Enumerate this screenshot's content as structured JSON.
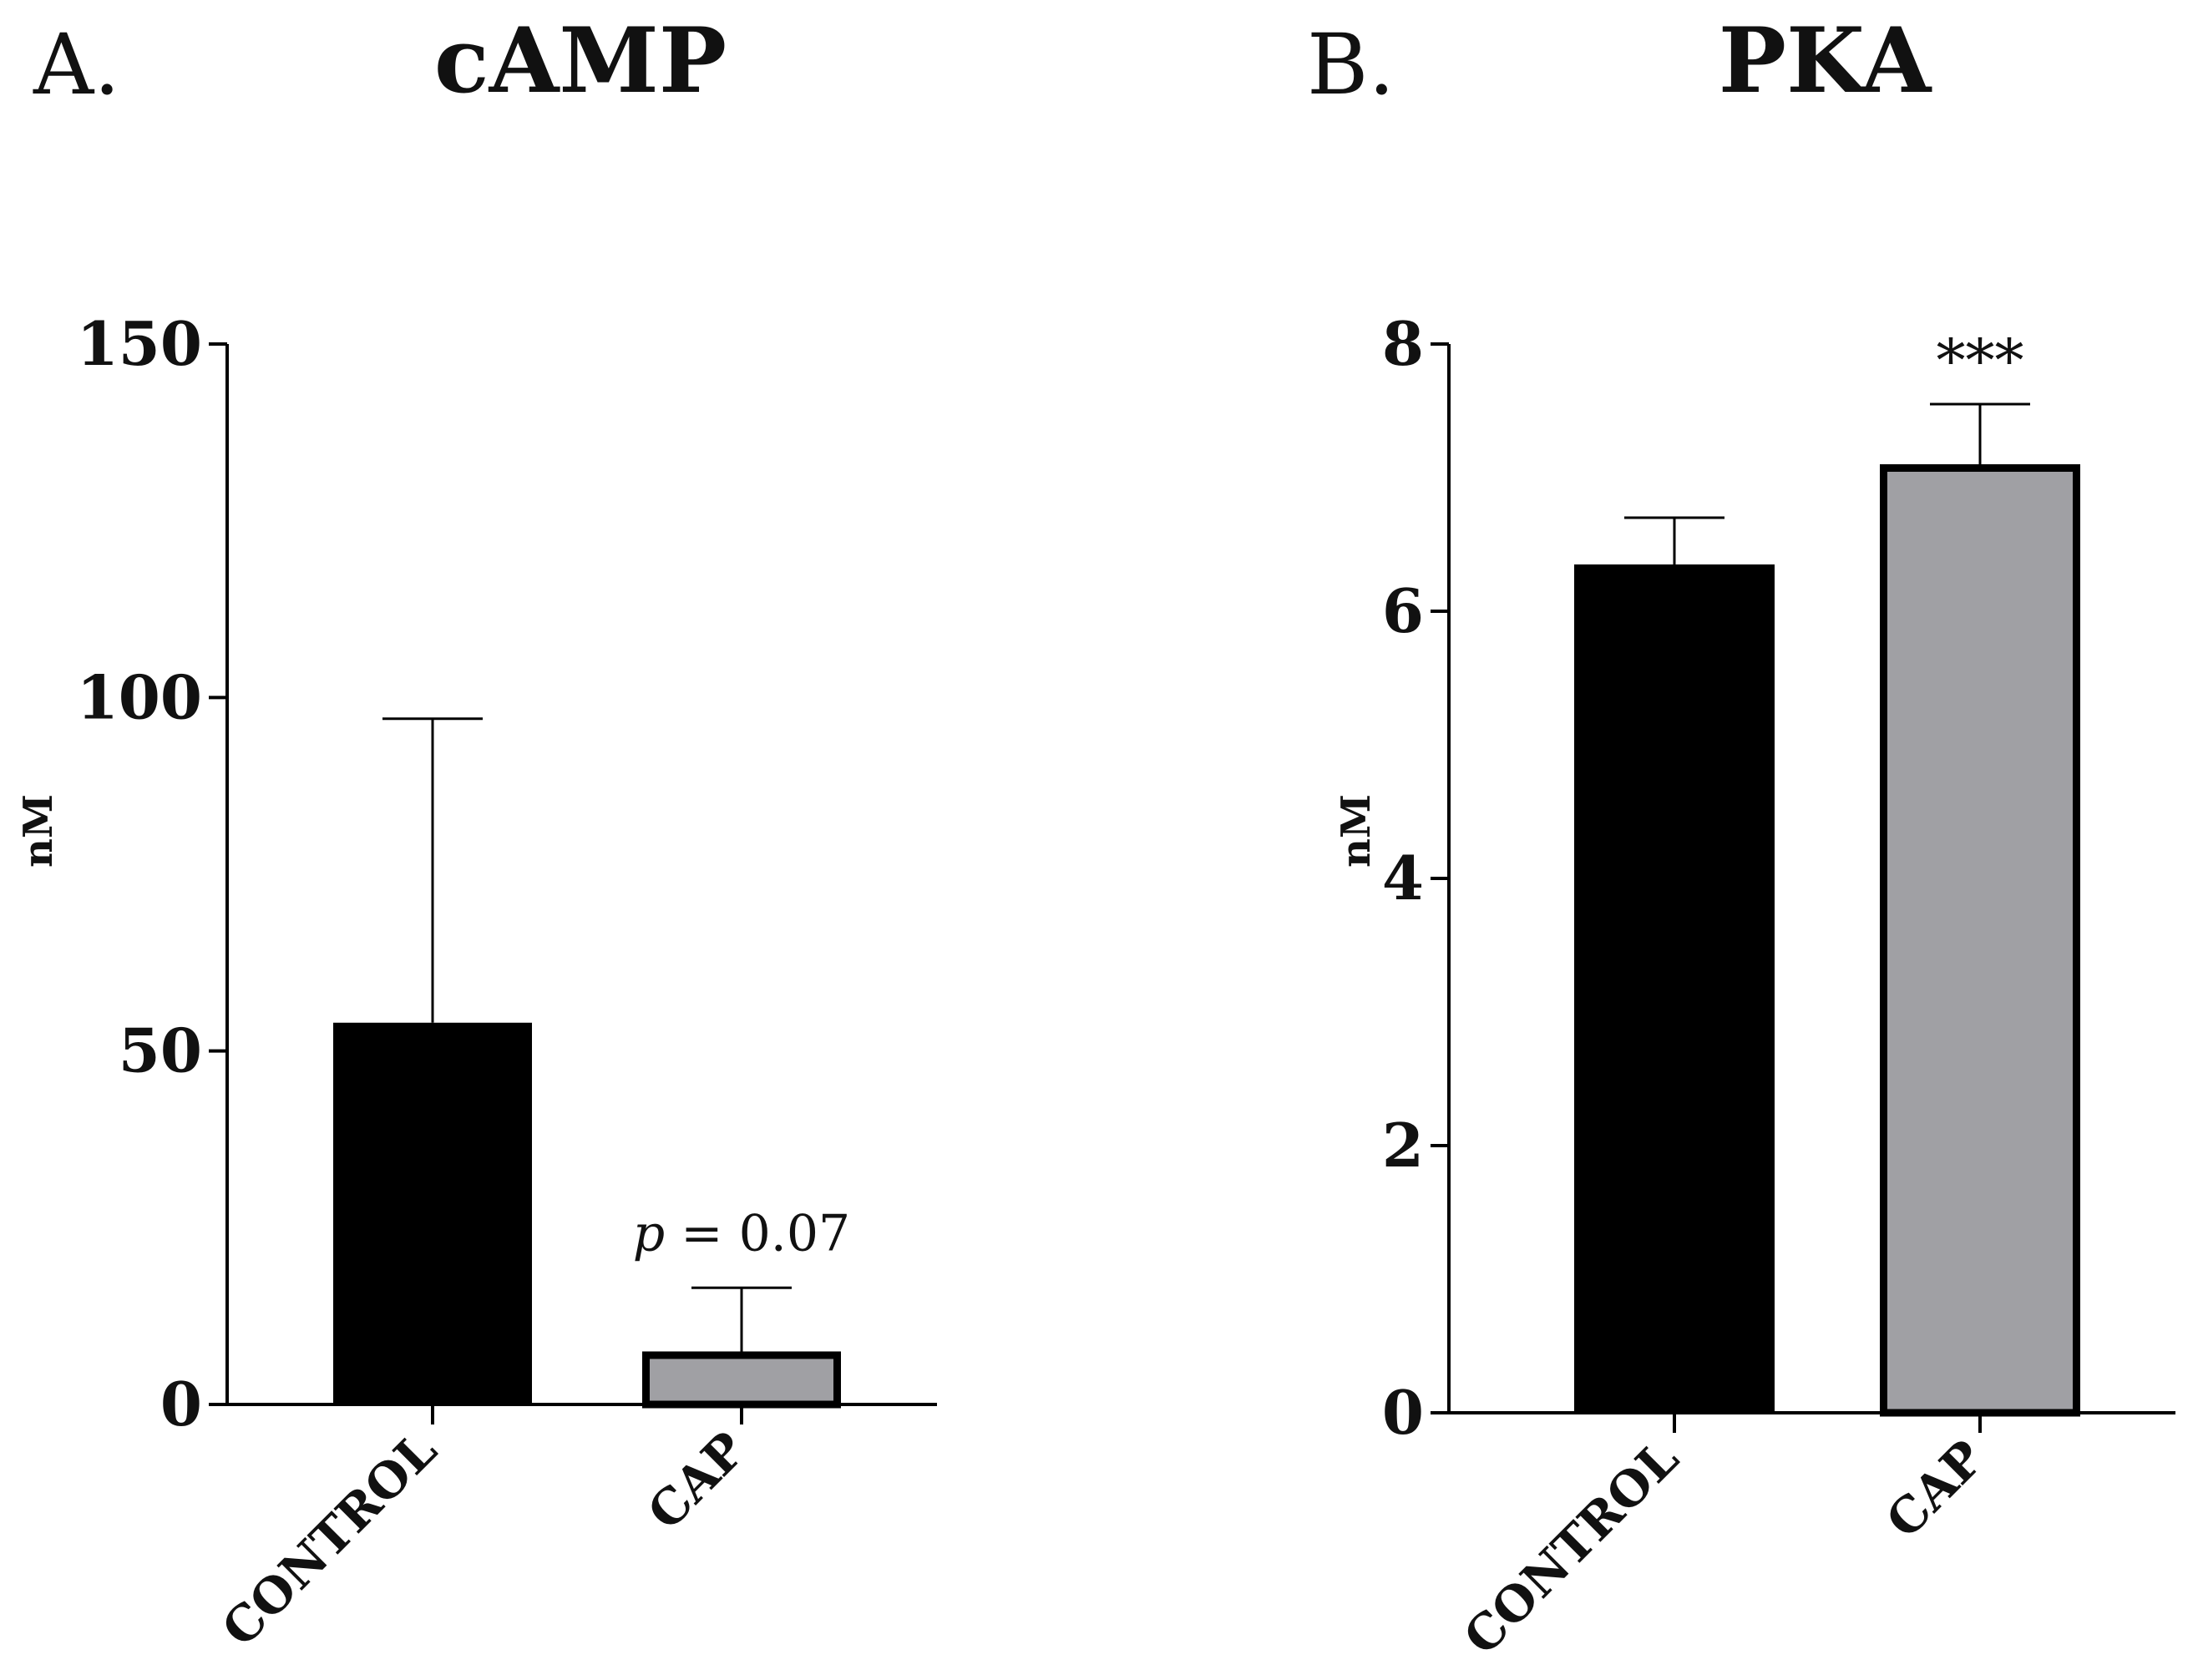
{
  "chart_data": [
    {
      "type": "bar",
      "panel": "A.",
      "title": "cAMP",
      "ylabel": "nM",
      "ylim": [
        0,
        150
      ],
      "yticks": [
        0,
        50,
        100,
        150
      ],
      "categories": [
        "CONTROL",
        "CAP"
      ],
      "values": [
        54,
        7.5
      ],
      "errors": [
        43,
        9
      ],
      "colors": [
        "#000000",
        "#a0a0a4"
      ],
      "annotations": [
        {
          "category": "CAP",
          "p_symbol": "p",
          "text": " = 0.07"
        }
      ]
    },
    {
      "type": "bar",
      "panel": "B.",
      "title": "PKA",
      "ylabel": "nM",
      "ylim": [
        0,
        8
      ],
      "yticks": [
        0,
        2,
        4,
        6,
        8
      ],
      "categories": [
        "CONTROL",
        "CAP"
      ],
      "values": [
        6.35,
        7.1
      ],
      "errors": [
        0.35,
        0.45
      ],
      "colors": [
        "#000000",
        "#a0a0a4"
      ],
      "annotations": [
        {
          "category": "CAP",
          "text": "***"
        }
      ]
    }
  ]
}
